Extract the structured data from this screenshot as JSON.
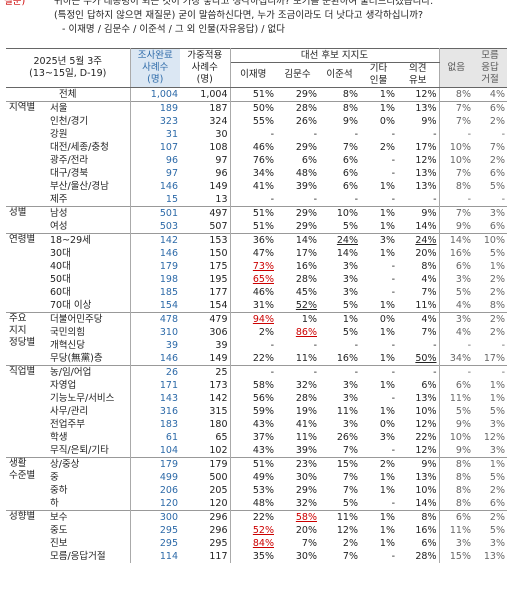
{
  "question": {
    "prefix": "질문)",
    "lines": [
      "귀하는 누가 대통령이 되는 것이 가장 좋다고 생각하십니까? 보기를 순환하여 불러드리겠습니다.",
      "(특정인 답하지 않으면 재질문) 굳이 말씀하신다면, 누가 조금이라도 더 낫다고 생각하십니까?",
      "- 이재명 / 김문수 / 이준석 / 그 외 인물(자유응답) / 없다"
    ]
  },
  "table": {
    "title": [
      "2025년 5월 3주",
      "(13~15일, D-19)"
    ],
    "super_header": "대선 후보 지지도",
    "columns": [
      [
        "조사완료",
        "사례수",
        "(명)"
      ],
      [
        "가중적용",
        "사례수",
        "(명)"
      ],
      [
        "이재명"
      ],
      [
        "김문수"
      ],
      [
        "이준석"
      ],
      [
        "기타",
        "인물"
      ],
      [
        "의견",
        "유보"
      ],
      [
        "없음"
      ],
      [
        "모름",
        "응답",
        "거절"
      ]
    ],
    "total": {
      "label": "전체",
      "cells": [
        "1,004",
        "1,004",
        "51%",
        "29%",
        "8%",
        "1%",
        "12%",
        "8%",
        "4%"
      ]
    },
    "groups": [
      {
        "name": [
          "지역별"
        ],
        "rows": [
          {
            "label": "서울",
            "cells": [
              "189",
              "187",
              "50%",
              "28%",
              "8%",
              "1%",
              "13%",
              "7%",
              "6%"
            ]
          },
          {
            "label": "인천/경기",
            "cells": [
              "323",
              "324",
              "55%",
              "26%",
              "9%",
              "0%",
              "9%",
              "7%",
              "2%"
            ]
          },
          {
            "label": "강원",
            "cells": [
              "31",
              "30",
              "-",
              "-",
              "-",
              "-",
              "-",
              "-",
              "-"
            ]
          },
          {
            "label": "대전/세종/충청",
            "cells": [
              "107",
              "108",
              "46%",
              "29%",
              "7%",
              "2%",
              "17%",
              "10%",
              "7%"
            ]
          },
          {
            "label": "광주/전라",
            "cells": [
              "96",
              "97",
              "76%",
              "6%",
              "6%",
              "-",
              "12%",
              "10%",
              "2%"
            ]
          },
          {
            "label": "대구/경북",
            "cells": [
              "97",
              "96",
              "34%",
              "48%",
              "6%",
              "-",
              "13%",
              "7%",
              "6%"
            ]
          },
          {
            "label": "부산/울산/경남",
            "cells": [
              "146",
              "149",
              "41%",
              "39%",
              "6%",
              "1%",
              "13%",
              "8%",
              "5%"
            ]
          },
          {
            "label": "제주",
            "cells": [
              "15",
              "13",
              "-",
              "-",
              "-",
              "-",
              "-",
              "-",
              "-"
            ]
          }
        ]
      },
      {
        "name": [
          "성별"
        ],
        "rows": [
          {
            "label": "남성",
            "cells": [
              "501",
              "497",
              "51%",
              "29%",
              "10%",
              "1%",
              "9%",
              "7%",
              "3%"
            ]
          },
          {
            "label": "여성",
            "cells": [
              "503",
              "507",
              "51%",
              "29%",
              "5%",
              "1%",
              "14%",
              "9%",
              "6%"
            ]
          }
        ]
      },
      {
        "name": [
          "연령별"
        ],
        "rows": [
          {
            "label": "18~29세",
            "cells": [
              "142",
              "153",
              "36%",
              "14%",
              {
                "text": "24%",
                "style": "underline"
              },
              "3%",
              {
                "text": "24%",
                "style": "underline"
              },
              "14%",
              "10%"
            ]
          },
          {
            "label": "30대",
            "cells": [
              "146",
              "150",
              "47%",
              "17%",
              "14%",
              "1%",
              "20%",
              "16%",
              "5%"
            ]
          },
          {
            "label": "40대",
            "cells": [
              "179",
              "175",
              {
                "text": "73%",
                "style": "red"
              },
              "16%",
              "3%",
              "-",
              "8%",
              "6%",
              "1%"
            ]
          },
          {
            "label": "50대",
            "cells": [
              "198",
              "195",
              {
                "text": "65%",
                "style": "red"
              },
              "28%",
              "3%",
              "-",
              "4%",
              "3%",
              "2%"
            ]
          },
          {
            "label": "60대",
            "cells": [
              "185",
              "177",
              "46%",
              "45%",
              "3%",
              "-",
              "7%",
              "5%",
              "2%"
            ]
          },
          {
            "label": "70대 이상",
            "cells": [
              "154",
              "154",
              "31%",
              {
                "text": "52%",
                "style": "underline"
              },
              "5%",
              "1%",
              "11%",
              "4%",
              "8%"
            ]
          }
        ]
      },
      {
        "name": [
          "주요",
          "지지",
          "정당별"
        ],
        "rows": [
          {
            "label": "더불어민주당",
            "cells": [
              "478",
              "479",
              {
                "text": "94%",
                "style": "red"
              },
              "1%",
              "1%",
              "0%",
              "4%",
              "3%",
              "2%"
            ]
          },
          {
            "label": "국민의힘",
            "cells": [
              "310",
              "306",
              "2%",
              {
                "text": "86%",
                "style": "red"
              },
              "5%",
              "1%",
              "7%",
              "4%",
              "2%"
            ]
          },
          {
            "label": "개혁신당",
            "cells": [
              "39",
              "39",
              "-",
              "-",
              "-",
              "-",
              "-",
              "-",
              "-"
            ]
          },
          {
            "label": "무당(無黨)층",
            "cells": [
              "146",
              "149",
              "22%",
              "11%",
              "16%",
              "1%",
              {
                "text": "50%",
                "style": "underline"
              },
              "34%",
              "17%"
            ]
          }
        ]
      },
      {
        "name": [
          "직업별"
        ],
        "rows": [
          {
            "label": "농/임/어업",
            "cells": [
              "26",
              "25",
              "-",
              "-",
              "-",
              "-",
              "-",
              "-",
              "-"
            ]
          },
          {
            "label": "자영업",
            "cells": [
              "171",
              "173",
              "58%",
              "32%",
              "3%",
              "1%",
              "6%",
              "6%",
              "1%"
            ]
          },
          {
            "label": "기능노무/서비스",
            "cells": [
              "143",
              "142",
              "56%",
              "28%",
              "3%",
              "-",
              "13%",
              "11%",
              "1%"
            ]
          },
          {
            "label": "사무/관리",
            "cells": [
              "316",
              "315",
              "59%",
              "19%",
              "11%",
              "1%",
              "10%",
              "5%",
              "5%"
            ]
          },
          {
            "label": "전업주부",
            "cells": [
              "183",
              "180",
              "43%",
              "41%",
              "3%",
              "0%",
              "12%",
              "9%",
              "3%"
            ]
          },
          {
            "label": "학생",
            "cells": [
              "61",
              "65",
              "37%",
              "11%",
              "26%",
              "3%",
              "22%",
              "10%",
              "12%"
            ]
          },
          {
            "label": "무직/은퇴/기타",
            "cells": [
              "104",
              "102",
              "43%",
              "39%",
              "7%",
              "-",
              "12%",
              "9%",
              "3%"
            ]
          }
        ]
      },
      {
        "name": [
          "생활",
          "수준별"
        ],
        "rows": [
          {
            "label": "상/중상",
            "cells": [
              "179",
              "179",
              "51%",
              "23%",
              "15%",
              "2%",
              "9%",
              "8%",
              "1%"
            ]
          },
          {
            "label": "중",
            "cells": [
              "499",
              "500",
              "49%",
              "30%",
              "7%",
              "1%",
              "13%",
              "8%",
              "5%"
            ]
          },
          {
            "label": "중하",
            "cells": [
              "206",
              "205",
              "53%",
              "29%",
              "7%",
              "1%",
              "10%",
              "8%",
              "2%"
            ]
          },
          {
            "label": "하",
            "cells": [
              "120",
              "120",
              "48%",
              "32%",
              "5%",
              "-",
              "14%",
              "8%",
              "6%"
            ]
          }
        ]
      },
      {
        "name": [
          "성향별"
        ],
        "rows": [
          {
            "label": "보수",
            "cells": [
              "300",
              "296",
              "22%",
              {
                "text": "58%",
                "style": "red"
              },
              "11%",
              "1%",
              "8%",
              "6%",
              "2%"
            ]
          },
          {
            "label": "중도",
            "cells": [
              "295",
              "296",
              {
                "text": "52%",
                "style": "red"
              },
              "20%",
              "12%",
              "1%",
              "16%",
              "11%",
              "5%"
            ]
          },
          {
            "label": "진보",
            "cells": [
              "295",
              "295",
              {
                "text": "84%",
                "style": "red"
              },
              "7%",
              "2%",
              "1%",
              "6%",
              "3%",
              "3%"
            ]
          },
          {
            "label": "모름/응답거절",
            "cells": [
              "114",
              "117",
              "35%",
              "30%",
              "7%",
              "-",
              "28%",
              "15%",
              "13%"
            ]
          }
        ]
      }
    ]
  }
}
